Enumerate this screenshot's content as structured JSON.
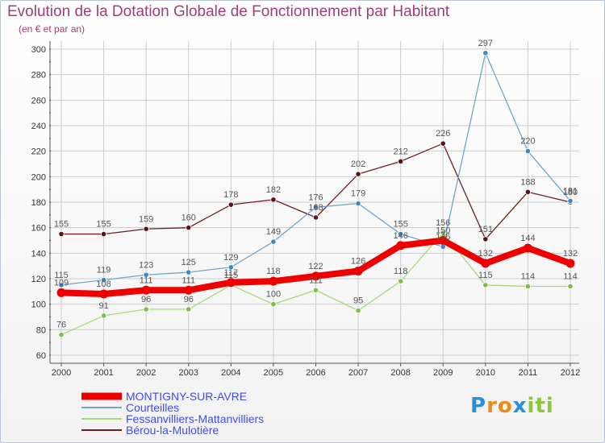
{
  "title": "Evolution de la Dotation Globale de Fonctionnement par Habitant",
  "subtitle": "(en € et par an)",
  "logo": {
    "letters": [
      "P",
      "r",
      "o",
      "x",
      "i",
      "t",
      "i"
    ],
    "colors": [
      "#2c8fd6",
      "#f08a1c",
      "#f08a1c",
      "#2c8fd6",
      "#8cc63f",
      "#8cc63f",
      "#8cc63f"
    ]
  },
  "colors": {
    "grid": "#cccccc",
    "axis": "#555555",
    "tick_mark": "#cc2222",
    "value_label": "#555555"
  },
  "chart_data": {
    "type": "line",
    "title": "Evolution de la Dotation Globale de Fonctionnement par Habitant",
    "subtitle": "(en € et par an)",
    "xlabel": "",
    "ylabel": "",
    "ylim": [
      60,
      300
    ],
    "yticks": [
      60,
      80,
      100,
      120,
      140,
      160,
      180,
      200,
      220,
      240,
      260,
      280,
      300
    ],
    "grid": true,
    "legend_position": "bottom-left",
    "x": [
      "2000",
      "2001",
      "2002",
      "2003",
      "2004",
      "2005",
      "2006",
      "2007",
      "2008",
      "2009",
      "2010",
      "2011",
      "2012"
    ],
    "series": [
      {
        "name": "Bérou-la-Mulotière",
        "color": "#6b1f22",
        "marker": "#5a1518",
        "values": [
          155,
          155,
          159,
          160,
          178,
          182,
          168,
          202,
          212,
          226,
          151,
          188,
          180
        ]
      },
      {
        "name": "Courteilles",
        "color": "#6fa4cf",
        "marker": "#3a88c8",
        "values": [
          115,
          119,
          123,
          125,
          129,
          149,
          176,
          179,
          155,
          145,
          297,
          220,
          181
        ]
      },
      {
        "name": "Fessanvilliers-Mattanvilliers",
        "color": "#a6d97a",
        "marker": "#7cc043",
        "values": [
          76,
          91,
          96,
          96,
          115,
          100,
          111,
          95,
          118,
          156,
          115,
          114,
          114
        ]
      },
      {
        "name": "MONTIGNY-SUR-AVRE",
        "color": "#ee0000",
        "marker": "#ee0000",
        "values": [
          109,
          108,
          111,
          111,
          117,
          118,
          122,
          126,
          146,
          150,
          132,
          144,
          132
        ]
      }
    ],
    "legend_order": [
      "MONTIGNY-SUR-AVRE",
      "Courteilles",
      "Fessanvilliers-Mattanvilliers",
      "Bérou-la-Mulotière"
    ]
  }
}
